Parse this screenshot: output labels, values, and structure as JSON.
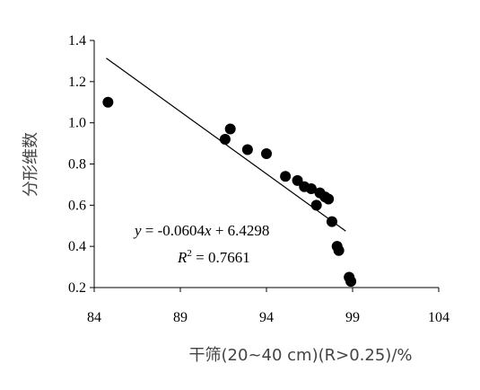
{
  "chart_data": {
    "type": "scatter",
    "title": "",
    "xlabel": "干筛(20~40 cm)(R>0.25)/%",
    "ylabel": "分形维数",
    "xlim": [
      84,
      104
    ],
    "ylim": [
      0.2,
      1.4
    ],
    "xticks": [
      84,
      89,
      94,
      99,
      104
    ],
    "yticks": [
      0.2,
      0.4,
      0.6,
      0.8,
      1.0,
      1.2,
      1.4
    ],
    "xtick_labels": [
      "84",
      "89",
      "94",
      "99",
      "104"
    ],
    "ytick_labels": [
      "0.2",
      "0.4",
      "0.6",
      "0.8",
      "1.0",
      "1.2",
      "1.4"
    ],
    "grid": false,
    "points": [
      {
        "x": 84.8,
        "y": 1.1
      },
      {
        "x": 91.6,
        "y": 0.92
      },
      {
        "x": 91.9,
        "y": 0.97
      },
      {
        "x": 92.9,
        "y": 0.87
      },
      {
        "x": 94.0,
        "y": 0.85
      },
      {
        "x": 95.1,
        "y": 0.74
      },
      {
        "x": 95.8,
        "y": 0.72
      },
      {
        "x": 96.2,
        "y": 0.69
      },
      {
        "x": 96.6,
        "y": 0.68
      },
      {
        "x": 97.1,
        "y": 0.66
      },
      {
        "x": 97.4,
        "y": 0.64
      },
      {
        "x": 97.6,
        "y": 0.63
      },
      {
        "x": 96.9,
        "y": 0.6
      },
      {
        "x": 97.8,
        "y": 0.52
      },
      {
        "x": 98.1,
        "y": 0.4
      },
      {
        "x": 98.2,
        "y": 0.38
      },
      {
        "x": 98.8,
        "y": 0.25
      },
      {
        "x": 98.9,
        "y": 0.23
      }
    ],
    "trendline": {
      "slope": -0.0604,
      "intercept": 6.4298,
      "x_start": 84.7,
      "x_end": 98.6,
      "equation_text": {
        "y": "y",
        "equals_part": " = -0.0604",
        "x": "x",
        "rest": " + 6.4298"
      },
      "r2_text": {
        "r": "R",
        "sup": "2",
        "rest": " = 0.7661"
      }
    }
  }
}
